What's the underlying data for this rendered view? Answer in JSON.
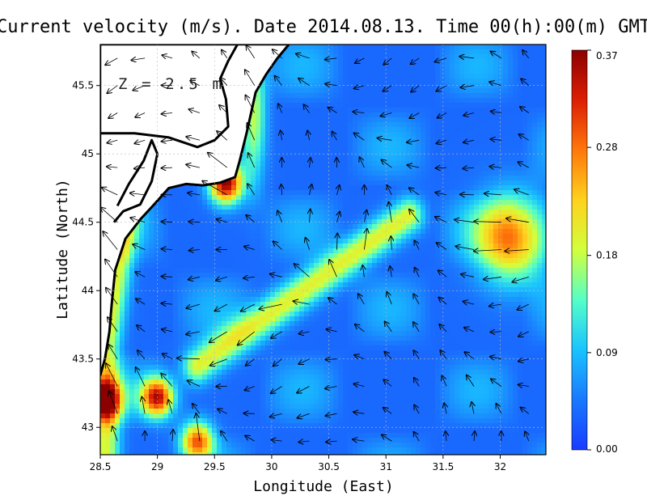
{
  "chart_data": {
    "type": "heatmap",
    "title": "Current velocity (m/s). Date 2014.08.13. Time 00(h):00(m) GMT",
    "annotation": "Z = 2.5 m",
    "xlabel": "Longitude (East)",
    "ylabel": "Latitude (North)",
    "xlim": [
      28.5,
      32.4
    ],
    "ylim": [
      42.8,
      45.8
    ],
    "x_ticks": [
      "28.5",
      "29",
      "29.5",
      "30",
      "30.5",
      "31",
      "31.5",
      "32"
    ],
    "x_tick_values": [
      28.5,
      29,
      29.5,
      30,
      30.5,
      31,
      31.5,
      32
    ],
    "y_ticks": [
      "43",
      "43.5",
      "44",
      "44.5",
      "45",
      "45.5"
    ],
    "y_tick_values": [
      43,
      43.5,
      44,
      44.5,
      45,
      45.5
    ],
    "grid": true,
    "colorbar": {
      "ticks": [
        "0.00",
        "0.09",
        "0.18",
        "0.28",
        "0.37"
      ],
      "tick_values": [
        0.0,
        0.09,
        0.18,
        0.28,
        0.37
      ],
      "range": [
        0.0,
        0.37
      ],
      "colors": [
        "#1a3cff",
        "#1a78ff",
        "#19c3ff",
        "#55ffc8",
        "#d2ff3c",
        "#ffd21e",
        "#ff780a",
        "#dc1e05",
        "#8c0000"
      ]
    },
    "coastline": [
      {
        "name": "western-coast",
        "points": [
          [
            28.5,
            43.38
          ],
          [
            28.54,
            43.5
          ],
          [
            28.58,
            43.7
          ],
          [
            28.6,
            43.9
          ],
          [
            28.63,
            44.15
          ],
          [
            28.72,
            44.38
          ],
          [
            28.85,
            44.52
          ],
          [
            28.96,
            44.62
          ],
          [
            29.1,
            44.75
          ],
          [
            29.25,
            44.78
          ],
          [
            29.4,
            44.77
          ],
          [
            29.55,
            44.79
          ],
          [
            29.68,
            44.83
          ],
          [
            29.72,
            44.95
          ],
          [
            29.78,
            45.15
          ],
          [
            29.82,
            45.3
          ],
          [
            29.86,
            45.45
          ],
          [
            29.95,
            45.58
          ],
          [
            30.05,
            45.7
          ],
          [
            30.15,
            45.8
          ]
        ]
      },
      {
        "name": "danube-delta-lakes",
        "points": [
          [
            28.62,
            44.5
          ],
          [
            28.7,
            44.58
          ],
          [
            28.85,
            44.63
          ],
          [
            28.95,
            44.8
          ],
          [
            29.0,
            45.0
          ],
          [
            28.95,
            45.1
          ],
          [
            28.88,
            44.95
          ],
          [
            28.75,
            44.78
          ],
          [
            28.65,
            44.62
          ]
        ]
      },
      {
        "name": "northern-shore",
        "points": [
          [
            28.5,
            45.15
          ],
          [
            28.8,
            45.15
          ],
          [
            29.1,
            45.12
          ],
          [
            29.35,
            45.05
          ],
          [
            29.5,
            45.1
          ],
          [
            29.62,
            45.2
          ],
          [
            29.6,
            45.4
          ],
          [
            29.55,
            45.55
          ],
          [
            29.62,
            45.68
          ],
          [
            29.7,
            45.8
          ]
        ]
      }
    ],
    "speed_features": [
      {
        "name": "offshore-jet",
        "lon": [
          29.35,
          31.2
        ],
        "lat": [
          43.45,
          44.55
        ],
        "peak": 0.22
      },
      {
        "name": "coastal-hotspot",
        "lon": 29.6,
        "lat": 44.78,
        "peak": 0.37
      },
      {
        "name": "southwest-hotspot",
        "lon": 29.0,
        "lat": 43.22,
        "peak": 0.34
      },
      {
        "name": "western-corner",
        "lon": 28.55,
        "lat": 43.2,
        "peak": 0.3
      },
      {
        "name": "eastern-eddy",
        "lon": 32.1,
        "lat": 44.38,
        "peak": 0.27
      },
      {
        "name": "southern-strip",
        "lon": 29.35,
        "lat": 42.9,
        "peak": 0.29
      }
    ],
    "mean_flow_direction": "southwest"
  }
}
